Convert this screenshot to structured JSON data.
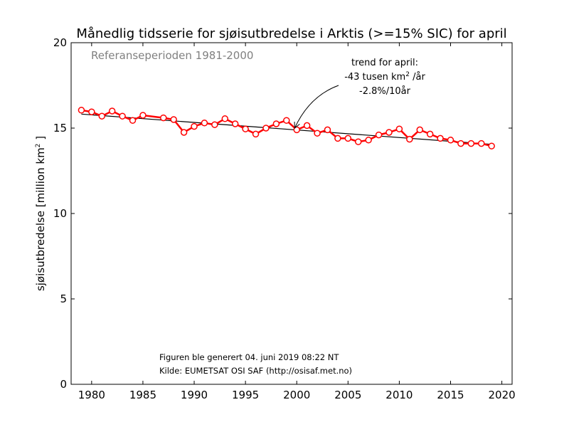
{
  "chart_data": {
    "type": "line",
    "title": "Månedlig tidsserie for sjøisutbredelse i Arktis (>=15% SIC) for april",
    "reference_period": "Referanseperioden 1981-2000",
    "ylabel": {
      "main": "sjøisutbredelse [million km",
      "sup": "2",
      "close": " ]"
    },
    "xlabel": "",
    "xlim": [
      1978,
      2021
    ],
    "ylim": [
      0,
      20
    ],
    "xticks": [
      1980,
      1985,
      1990,
      1995,
      2000,
      2005,
      2010,
      2015,
      2020
    ],
    "yticks": [
      0,
      5,
      10,
      15,
      20
    ],
    "x": [
      1979,
      1980,
      1981,
      1982,
      1983,
      1984,
      1985,
      1987,
      1988,
      1989,
      1990,
      1991,
      1992,
      1993,
      1994,
      1995,
      1996,
      1997,
      1998,
      1999,
      2000,
      2001,
      2002,
      2003,
      2004,
      2005,
      2006,
      2007,
      2008,
      2009,
      2010,
      2011,
      2012,
      2013,
      2014,
      2015,
      2016,
      2017,
      2018,
      2019
    ],
    "series": [
      {
        "values": [
          16.05,
          15.95,
          15.7,
          16.0,
          15.7,
          15.45,
          15.75,
          15.6,
          15.5,
          14.75,
          15.1,
          15.3,
          15.2,
          15.55,
          15.25,
          14.95,
          14.65,
          15.0,
          15.25,
          15.45,
          14.9,
          15.15,
          14.7,
          14.9,
          14.4,
          14.4,
          14.2,
          14.3,
          14.6,
          14.75,
          14.95,
          14.35,
          14.9,
          14.65,
          14.4,
          14.3,
          14.1,
          14.1,
          14.1,
          13.95
        ],
        "color": "#ff0000"
      }
    ],
    "trend": {
      "x": [
        1979,
        2019
      ],
      "y": [
        15.82,
        14.05
      ],
      "color": "#000000"
    },
    "annotation": {
      "line1": "trend for april:",
      "line2_a": "-43 tusen km",
      "line2_sup": "2",
      "line2_b": " /år",
      "line3": "-2.8%/10år",
      "arrow_to": [
        1999.8,
        15.0
      ]
    },
    "footer": {
      "line1": "Figuren ble generert 04. juni 2019 08:22 NT",
      "line2": "Kilde: EUMETSAT OSI SAF (http://osisaf.met.no)"
    },
    "grid": false,
    "legend": "none"
  }
}
